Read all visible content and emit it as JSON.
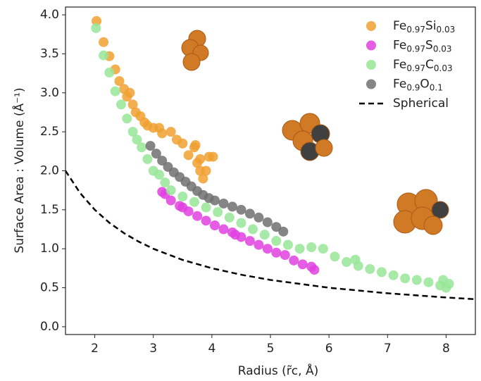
{
  "chart_data": {
    "type": "scatter",
    "xlabel": "Radius (r̃c, Å)",
    "ylabel": "Surface Area : Volume  (Å⁻¹)",
    "xlim": [
      1.5,
      8.5
    ],
    "ylim": [
      -0.1,
      4.1
    ],
    "xticks": [
      2,
      3,
      4,
      5,
      6,
      7,
      8
    ],
    "yticks": [
      {
        "value": 0,
        "label": "0.0"
      },
      {
        "value": 0.5,
        "label": "0.5"
      },
      {
        "value": 1,
        "label": "1.0"
      },
      {
        "value": 1.5,
        "label": "1.5"
      },
      {
        "value": 2,
        "label": "2.0"
      },
      {
        "value": 2.5,
        "label": "2.5"
      },
      {
        "value": 3,
        "label": "3.0"
      },
      {
        "value": 3.5,
        "label": "3.5"
      },
      {
        "value": 4,
        "label": "4.0"
      }
    ],
    "series": [
      {
        "name": "Fe0.97Si0.03",
        "color": "#f0a030",
        "kind": "scatter",
        "x": [
          2.03,
          2.15,
          2.25,
          2.35,
          2.42,
          2.5,
          2.55,
          2.6,
          2.65,
          2.7,
          2.78,
          2.85,
          2.9,
          3.0,
          3.1,
          3.15,
          3.3,
          3.4,
          3.5,
          3.6,
          3.7,
          3.75,
          3.8,
          3.85,
          3.9,
          3.95,
          4.02,
          3.72,
          3.8
        ],
        "y": [
          3.92,
          3.65,
          3.47,
          3.3,
          3.15,
          3.05,
          2.95,
          3.0,
          2.85,
          2.75,
          2.7,
          2.62,
          2.58,
          2.55,
          2.55,
          2.48,
          2.5,
          2.4,
          2.35,
          2.2,
          2.3,
          2.1,
          2.0,
          1.9,
          2.0,
          2.18,
          2.18,
          2.33,
          2.15
        ]
      },
      {
        "name": "Fe0.97S0.03",
        "color": "#e040e0",
        "kind": "scatter",
        "x": [
          3.15,
          3.2,
          3.3,
          3.45,
          3.5,
          3.6,
          3.75,
          3.9,
          4.05,
          4.2,
          4.35,
          4.4,
          4.5,
          4.65,
          4.8,
          4.95,
          5.1,
          5.25,
          5.4,
          5.55,
          5.7,
          5.75
        ],
        "y": [
          1.73,
          1.7,
          1.62,
          1.55,
          1.53,
          1.48,
          1.42,
          1.36,
          1.3,
          1.25,
          1.21,
          1.18,
          1.15,
          1.1,
          1.05,
          1.0,
          0.95,
          0.92,
          0.85,
          0.8,
          0.77,
          0.73
        ]
      },
      {
        "name": "Fe0.97C0.03",
        "color": "#98e698",
        "kind": "scatter",
        "x": [
          2.02,
          2.15,
          2.25,
          2.35,
          2.45,
          2.55,
          2.65,
          2.72,
          2.8,
          2.9,
          3.0,
          3.1,
          3.2,
          3.3,
          3.5,
          3.7,
          3.9,
          4.1,
          4.3,
          4.5,
          4.7,
          4.9,
          5.1,
          5.3,
          5.5,
          5.7,
          5.9,
          6.1,
          6.3,
          6.45,
          6.5,
          6.7,
          6.9,
          7.1,
          7.3,
          7.5,
          7.7,
          7.9,
          7.95,
          8.0,
          8.05
        ],
        "y": [
          3.83,
          3.48,
          3.26,
          3.02,
          2.85,
          2.67,
          2.5,
          2.4,
          2.3,
          2.15,
          2.0,
          1.95,
          1.85,
          1.75,
          1.67,
          1.6,
          1.53,
          1.47,
          1.4,
          1.33,
          1.25,
          1.18,
          1.1,
          1.05,
          1.0,
          1.02,
          1.0,
          0.9,
          0.83,
          0.86,
          0.78,
          0.74,
          0.7,
          0.66,
          0.62,
          0.6,
          0.57,
          0.53,
          0.6,
          0.5,
          0.55
        ]
      },
      {
        "name": "Fe0.9O0.1",
        "color": "#707070",
        "kind": "scatter",
        "x": [
          2.95,
          3.05,
          3.15,
          3.25,
          3.35,
          3.45,
          3.55,
          3.65,
          3.75,
          3.85,
          3.95,
          4.05,
          4.2,
          4.35,
          4.5,
          4.65,
          4.8,
          4.95,
          5.1,
          5.22
        ],
        "y": [
          2.32,
          2.22,
          2.13,
          2.05,
          1.98,
          1.92,
          1.86,
          1.8,
          1.74,
          1.69,
          1.65,
          1.62,
          1.58,
          1.54,
          1.5,
          1.45,
          1.4,
          1.34,
          1.28,
          1.22
        ]
      },
      {
        "name": "Spherical",
        "color": "#000000",
        "kind": "dashed-line",
        "x": [
          1.5,
          1.75,
          2,
          2.25,
          2.5,
          2.75,
          3,
          3.5,
          4,
          4.5,
          5,
          6,
          7,
          8,
          8.5
        ],
        "y": [
          2.0,
          1.714,
          1.5,
          1.333,
          1.2,
          1.091,
          1.0,
          0.857,
          0.75,
          0.667,
          0.6,
          0.5,
          0.429,
          0.375,
          0.353
        ]
      }
    ]
  }
}
